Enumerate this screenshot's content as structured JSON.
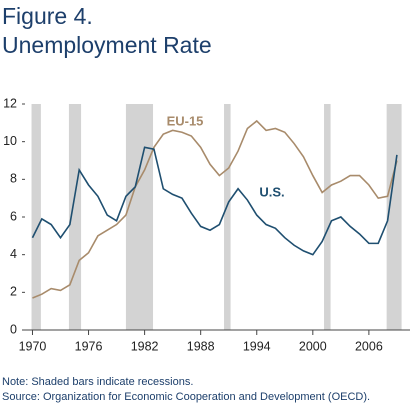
{
  "chart_data": {
    "type": "line",
    "title": "Figure 4.",
    "subtitle": "Unemployment Rate",
    "x": [
      1970,
      1971,
      1972,
      1973,
      1974,
      1975,
      1976,
      1977,
      1978,
      1979,
      1980,
      1981,
      1982,
      1983,
      1984,
      1985,
      1986,
      1987,
      1988,
      1989,
      1990,
      1991,
      1992,
      1993,
      1994,
      1995,
      1996,
      1997,
      1998,
      1999,
      2000,
      2001,
      2002,
      2003,
      2004,
      2005,
      2006,
      2007,
      2008,
      2009
    ],
    "series": [
      {
        "name": "EU-15",
        "color": "#a88b6b",
        "values": [
          1.7,
          1.9,
          2.2,
          2.1,
          2.4,
          3.7,
          4.1,
          5.0,
          5.3,
          5.6,
          6.1,
          7.6,
          8.5,
          9.7,
          10.4,
          10.6,
          10.5,
          10.3,
          9.7,
          8.8,
          8.2,
          8.6,
          9.5,
          10.7,
          11.1,
          10.6,
          10.7,
          10.5,
          9.9,
          9.2,
          8.2,
          7.3,
          7.7,
          7.9,
          8.2,
          8.2,
          7.7,
          7.0,
          7.1,
          9.0
        ]
      },
      {
        "name": "U.S.",
        "color": "#1f4f70",
        "values": [
          4.9,
          5.9,
          5.6,
          4.9,
          5.6,
          8.5,
          7.7,
          7.1,
          6.1,
          5.8,
          7.1,
          7.6,
          9.7,
          9.6,
          7.5,
          7.2,
          7.0,
          6.2,
          5.5,
          5.3,
          5.6,
          6.8,
          7.5,
          6.9,
          6.1,
          5.6,
          5.4,
          4.9,
          4.5,
          4.2,
          4.0,
          4.7,
          5.8,
          6.0,
          5.5,
          5.1,
          4.6,
          4.6,
          5.8,
          9.3
        ]
      }
    ],
    "recessions": [
      [
        1969.9,
        1970.9
      ],
      [
        1973.9,
        1975.2
      ],
      [
        1980.0,
        1982.9
      ],
      [
        1990.5,
        1991.2
      ],
      [
        2001.2,
        2001.9
      ],
      [
        2007.9,
        2009.5
      ]
    ],
    "recession_color": "#d3d3d3",
    "xlim": [
      1969.2,
      2010.4
    ],
    "xticks": [
      1970,
      1976,
      1982,
      1988,
      1994,
      2000,
      2006
    ],
    "ylim": [
      0,
      12
    ],
    "yticks": [
      0,
      2,
      4,
      6,
      8,
      10,
      12
    ],
    "note": "Note: Shaded bars indicate recessions.",
    "source": "Source: Organization for Economic Cooperation and Development (OECD)."
  }
}
